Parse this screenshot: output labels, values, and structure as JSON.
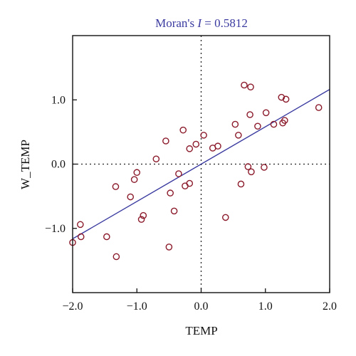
{
  "chart_data": {
    "type": "scatter",
    "title_prefix": "Moran's ",
    "title_stat": "I",
    "title_value": " = 0.5812",
    "xlabel": "TEMP",
    "ylabel": "W_TEMP",
    "xlim": [
      -2.0,
      2.0
    ],
    "ylim": [
      -2.0,
      2.0
    ],
    "x_ticks": [
      -2.0,
      -1.0,
      0.0,
      1.0,
      2.0
    ],
    "x_tick_labels": [
      "−2.0",
      "−1.0",
      "0.0",
      "1.0",
      "2.0"
    ],
    "y_ticks": [
      -1.0,
      0.0,
      1.0
    ],
    "y_tick_labels": [
      "−1.0",
      "0.0",
      "1.0"
    ],
    "reference_lines": {
      "x": 0.0,
      "y": 0.0,
      "style": "dotted"
    },
    "fit_line": {
      "slope": 0.5812,
      "intercept": 0.0,
      "color": "#3a3aa0"
    },
    "marker_color": "#8b1a2b",
    "title_color": "#3a3aa0",
    "points": [
      [
        -2.0,
        -1.22
      ],
      [
        -1.88,
        -0.94
      ],
      [
        -1.87,
        -1.13
      ],
      [
        -1.47,
        -1.13
      ],
      [
        -1.33,
        -0.35
      ],
      [
        -1.32,
        -1.44
      ],
      [
        -1.1,
        -0.51
      ],
      [
        -1.04,
        -0.24
      ],
      [
        -1.0,
        -0.13
      ],
      [
        -0.93,
        -0.86
      ],
      [
        -0.9,
        -0.8
      ],
      [
        -0.7,
        0.08
      ],
      [
        -0.55,
        0.36
      ],
      [
        -0.5,
        -1.29
      ],
      [
        -0.48,
        -0.45
      ],
      [
        -0.42,
        -0.73
      ],
      [
        -0.35,
        -0.15
      ],
      [
        -0.28,
        0.53
      ],
      [
        -0.25,
        -0.34
      ],
      [
        -0.18,
        -0.3
      ],
      [
        -0.18,
        0.24
      ],
      [
        -0.08,
        0.31
      ],
      [
        0.04,
        0.45
      ],
      [
        0.18,
        0.25
      ],
      [
        0.26,
        0.28
      ],
      [
        0.38,
        -0.83
      ],
      [
        0.53,
        0.62
      ],
      [
        0.58,
        0.45
      ],
      [
        0.62,
        -0.31
      ],
      [
        0.67,
        1.23
      ],
      [
        0.73,
        -0.04
      ],
      [
        0.76,
        0.77
      ],
      [
        0.77,
        1.2
      ],
      [
        0.78,
        -0.12
      ],
      [
        0.88,
        0.59
      ],
      [
        0.98,
        -0.05
      ],
      [
        1.01,
        0.8
      ],
      [
        1.13,
        0.62
      ],
      [
        1.25,
        1.04
      ],
      [
        1.27,
        0.64
      ],
      [
        1.3,
        0.68
      ],
      [
        1.32,
        1.01
      ],
      [
        1.83,
        0.88
      ]
    ]
  }
}
